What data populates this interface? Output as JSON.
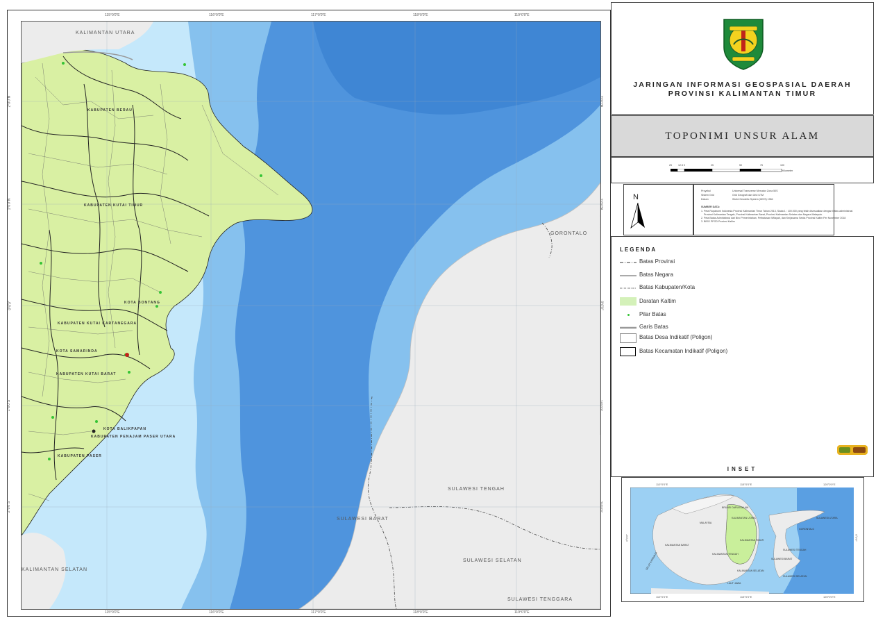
{
  "map": {
    "top_ticks": [
      "115°0'0\"E",
      "116°0'0\"E",
      "117°0'0\"E",
      "118°0'0\"E",
      "119°0'0\"E"
    ],
    "bottom_ticks": [
      "115°0'0\"E",
      "116°0'0\"E",
      "117°0'0\"E",
      "118°0'0\"E",
      "119°0'0\"E"
    ],
    "left_ticks": [
      "2°0'0\"N",
      "1°0'0\"N",
      "0°0'0\"",
      "1°0'0\"S",
      "2°0'0\"S"
    ],
    "right_ticks": [
      "2°0'0\"N",
      "1°0'0\"N",
      "0°0'0\"",
      "1°0'0\"S",
      "2°0'0\"S"
    ],
    "regions": {
      "kalimantan_utara": "KALIMANTAN UTARA",
      "kalimantan_selatan": "KALIMANTAN SELATAN",
      "gorontalo": "GORONTALO",
      "sulawesi_tengah": "SULAWESI TENGAH",
      "sulawesi_barat": "SULAWESI BARAT",
      "sulawesi_selatan": "SULAWESI SELATAN",
      "sulawesi_tenggara": "SULAWESI TENGGARA"
    },
    "districts": {
      "berau": "KABUPATEN BERAU",
      "kutai_timur": "KABUPATEN KUTAI TIMUR",
      "bontang": "KOTA BONTANG",
      "kutai_kartanegara": "KABUPATEN KUTAI KARTANEGARA",
      "samarinda": "KOTA SAMARINDA",
      "kutai_barat": "KABUPATEN KUTAI BARAT",
      "balikpapan": "KOTA BALIKPAPAN",
      "penajam": "KABUPATEN PENAJAM PASER UTARA",
      "paser": "KABUPATEN PASER"
    }
  },
  "title": {
    "line1": "JARINGAN INFORMASI GEOSPASIAL DAERAH",
    "line2": "PROVINSI KALIMANTAN TIMUR"
  },
  "subtitle": "TOPONIMI UNSUR ALAM",
  "scale": {
    "ticks": [
      "25",
      "12.5",
      "0",
      "25",
      "50",
      "75",
      "100"
    ],
    "unit": "Kilometer"
  },
  "north_label": "N",
  "info": {
    "proyeksi_key": "Proyeksi",
    "proyeksi_val": "Universal Transverse Mercator Zona 50S",
    "grid_key": "Sistem Grid",
    "grid_val": "Grid Geografi dan Grid UTM",
    "datum_key": "Datum",
    "datum_val": "World Geodetic System (WGS) 1984",
    "sumber_title": "SUMBER DATA:",
    "sumber_1": "1. Peta Rupabumi Indonesia Provinsi Kalimantan Timur Tahun 2013, Skala 1 : 100.000 yang telah disesuaikan dengan batas administrasi",
    "sumber_1b": "Provinsi Kalimantan Tengah, Provinsi Kalimantan Barat, Provinsi Kalimantan Selatan dan Negara Malaysia.",
    "sumber_2": "2. Peta Batas Administrasi dari Biro Pemerintahan, Perbatasan Wilayah, dan Kerjasama Setda Provinsi Kaltim Per November 2018",
    "sumber_3": "3. BIRO PPOD Provinsi Kaltim"
  },
  "legend": {
    "title": "LEGENDA",
    "items": [
      "Batas Provinsi",
      "Batas Negara",
      "Batas Kabupaten/Kota",
      "Daratan Kaltim",
      "Pilar Batas",
      "Garis Batas",
      "Batas Desa Indikatif (Poligon)",
      "Batas Kecamatan Indikatif (Poligon)"
    ]
  },
  "inset": {
    "title": "INSET",
    "top_ticks": [
      "110°0'0\"E",
      "115°0'0\"E",
      "120°0'0\"E"
    ],
    "bottom_ticks": [
      "110°0'0\"E",
      "115°0'0\"E",
      "120°0'0\"E"
    ],
    "left_tick": "0°0'0\"",
    "right_tick": "0°0'0\"",
    "labels": {
      "brunei": "BRUNEI DARUSSALAM",
      "malaysia": "MALAYSIA",
      "kaltara": "KALIMANTAN UTARA",
      "kaltim": "KALIMANTAN TIMUR",
      "kalbar": "KALIMANTAN BARAT",
      "kalteng": "KALIMANTAN TENGAH",
      "kalsel": "KALIMANTAN SELATAN",
      "sulbar": "SULAWESI BARAT",
      "sulsel": "SULAWESI SELATAN",
      "sulteng": "SULAWESI TENGAH",
      "sulut": "SULAWESI UTARA",
      "gorontalo": "GORONTALO",
      "laut_jawa": "LAUT JAWA",
      "selat": "SELAT KARIMATA"
    }
  },
  "colors": {
    "sea_deep": "#4f94dd",
    "sea_mid": "#86c1ee",
    "sea_shallow": "#c5e8fb",
    "land_kaltim": "#d9f0a3",
    "land_other": "#ececec",
    "legend_daratan": "#d4f1b9"
  }
}
